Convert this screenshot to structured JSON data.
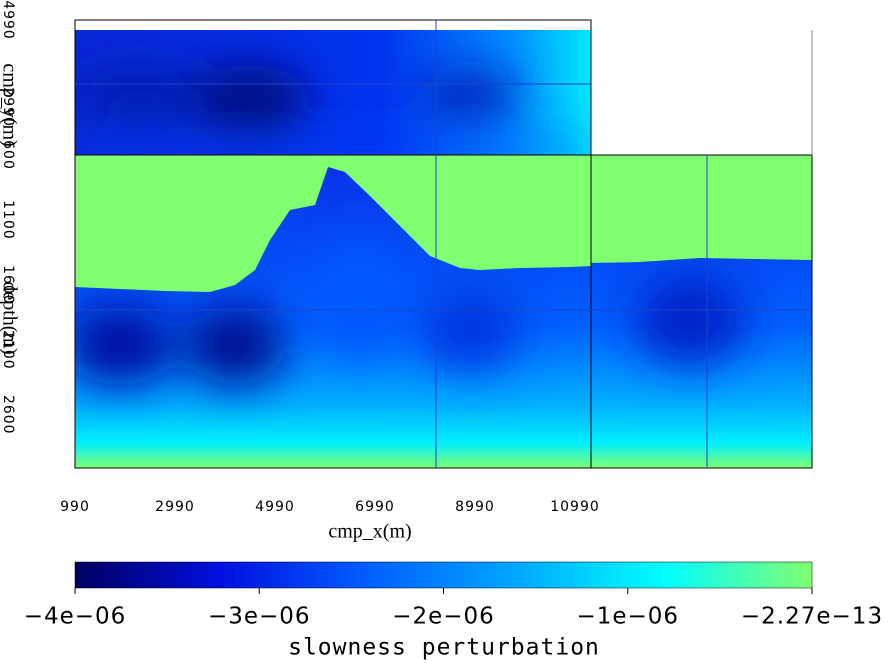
{
  "chart_data": {
    "type": "cube",
    "x_label": "cmp_x(m)",
    "y_label": "cmp_y(m)",
    "z_label": "depth(m)",
    "xlim": [
      990,
      11310
    ],
    "xticks": [
      990,
      2990,
      4990,
      6990,
      8990,
      10990
    ],
    "ylim": [
      1890,
      4990
    ],
    "yticks": [
      2990,
      4990
    ],
    "zlim": [
      600,
      3010
    ],
    "zticks": [
      600,
      1100,
      1600,
      2100,
      2600
    ],
    "colorbar": {
      "label": "slowness perturbation",
      "lim": [
        -4e-06,
        -2.27e-13
      ],
      "ticks": [
        {
          "value": -4e-06,
          "label": "−4e−06"
        },
        {
          "value": -3e-06,
          "label": "−3e−06"
        },
        {
          "value": -2e-06,
          "label": "−2e−06"
        },
        {
          "value": -1e-06,
          "label": "−1e−06"
        },
        {
          "value": -2.27e-13,
          "label": "−2.27e−13"
        }
      ],
      "colormap": [
        "#000060",
        "#0010e0",
        "#0060ff",
        "#00a8ff",
        "#00ffff",
        "#80ff70"
      ]
    }
  }
}
